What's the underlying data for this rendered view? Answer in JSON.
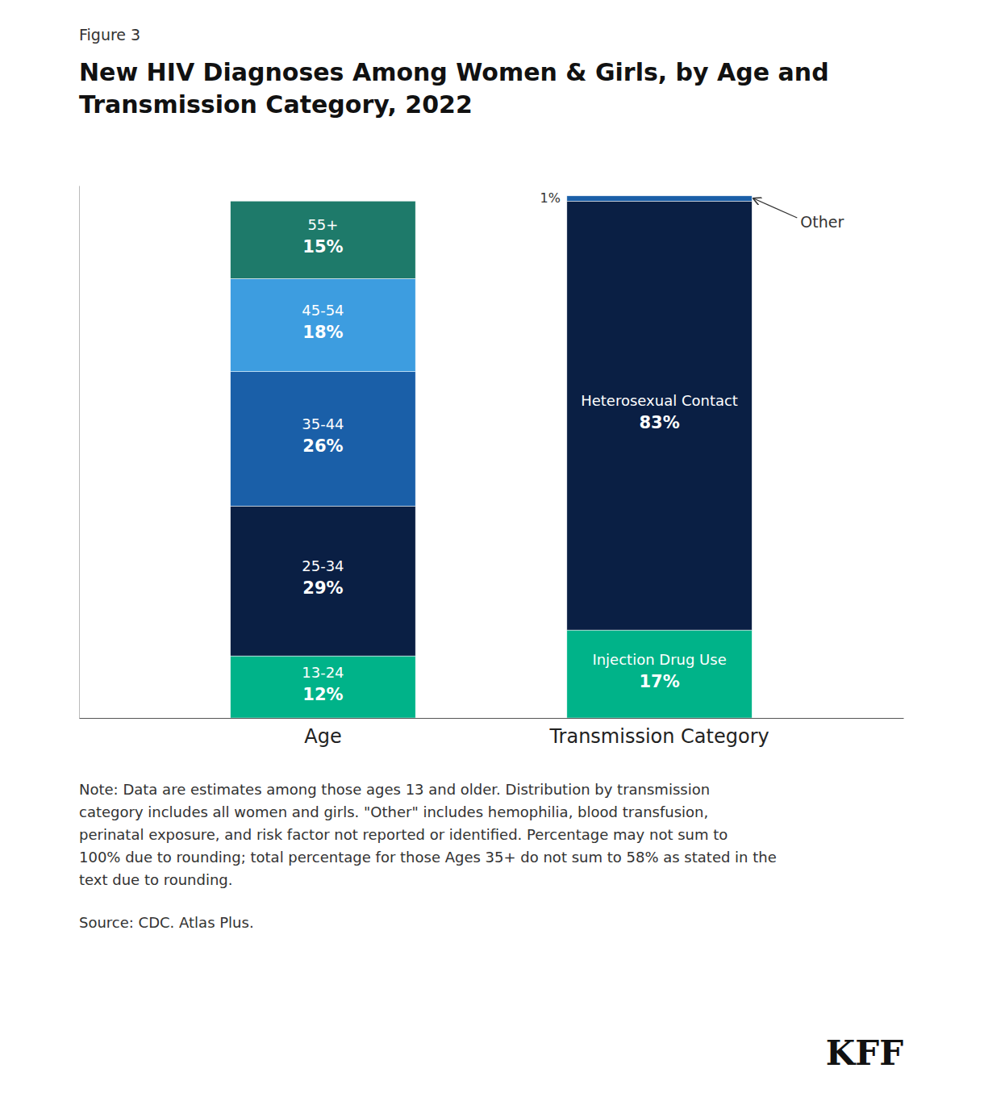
{
  "chart_data": {
    "type": "bar",
    "stacked": true,
    "data_labels": true,
    "tick_labels": "x",
    "figure_label": "Figure 3",
    "title": "New HIV Diagnoses Among Women & Girls, by Age and\nTransmission Category, 2022",
    "categories": [
      "Age",
      "Transmission Category"
    ],
    "series": [
      {
        "name": "13-24",
        "color": "#00b389",
        "values": [
          12,
          null
        ],
        "value_labels": [
          "12%",
          null
        ]
      },
      {
        "name": "25-34",
        "color": "#0a1f44",
        "values": [
          29,
          null
        ],
        "value_labels": [
          "29%",
          null
        ]
      },
      {
        "name": "35-44",
        "color": "#1a5fa8",
        "values": [
          26,
          null
        ],
        "value_labels": [
          "26%",
          null
        ]
      },
      {
        "name": "45-54",
        "color": "#3d9de0",
        "values": [
          18,
          null
        ],
        "value_labels": [
          "18%",
          null
        ]
      },
      {
        "name": "55+",
        "color": "#1e7a6a",
        "values": [
          15,
          null
        ],
        "value_labels": [
          "15%",
          null
        ]
      },
      {
        "name": "Injection Drug Use",
        "color": "#00b389",
        "values": [
          null,
          17
        ],
        "value_labels": [
          null,
          "17%"
        ]
      },
      {
        "name": "Heterosexual Contact",
        "color": "#0a1f44",
        "values": [
          null,
          83
        ],
        "value_labels": [
          null,
          "83%"
        ]
      },
      {
        "name": "Other",
        "color": "#1a5fa8",
        "values": [
          null,
          1
        ],
        "value_labels": [
          null,
          "1%"
        ]
      }
    ],
    "ylim": [
      0,
      103
    ],
    "note": "Note: Data are estimates among those ages 13 and older. Distribution by transmission\ncategory includes all women and girls. \"Other\" includes hemophilia, blood transfusion,\nperinatal exposure, and risk factor not reported or identified. Percentage may not sum to\n100% due to rounding; total percentage for those Ages 35+ do not sum to 58% as stated in the\ntext due to rounding.",
    "source": "Source: CDC. Atlas Plus.",
    "logo": "KFF"
  }
}
